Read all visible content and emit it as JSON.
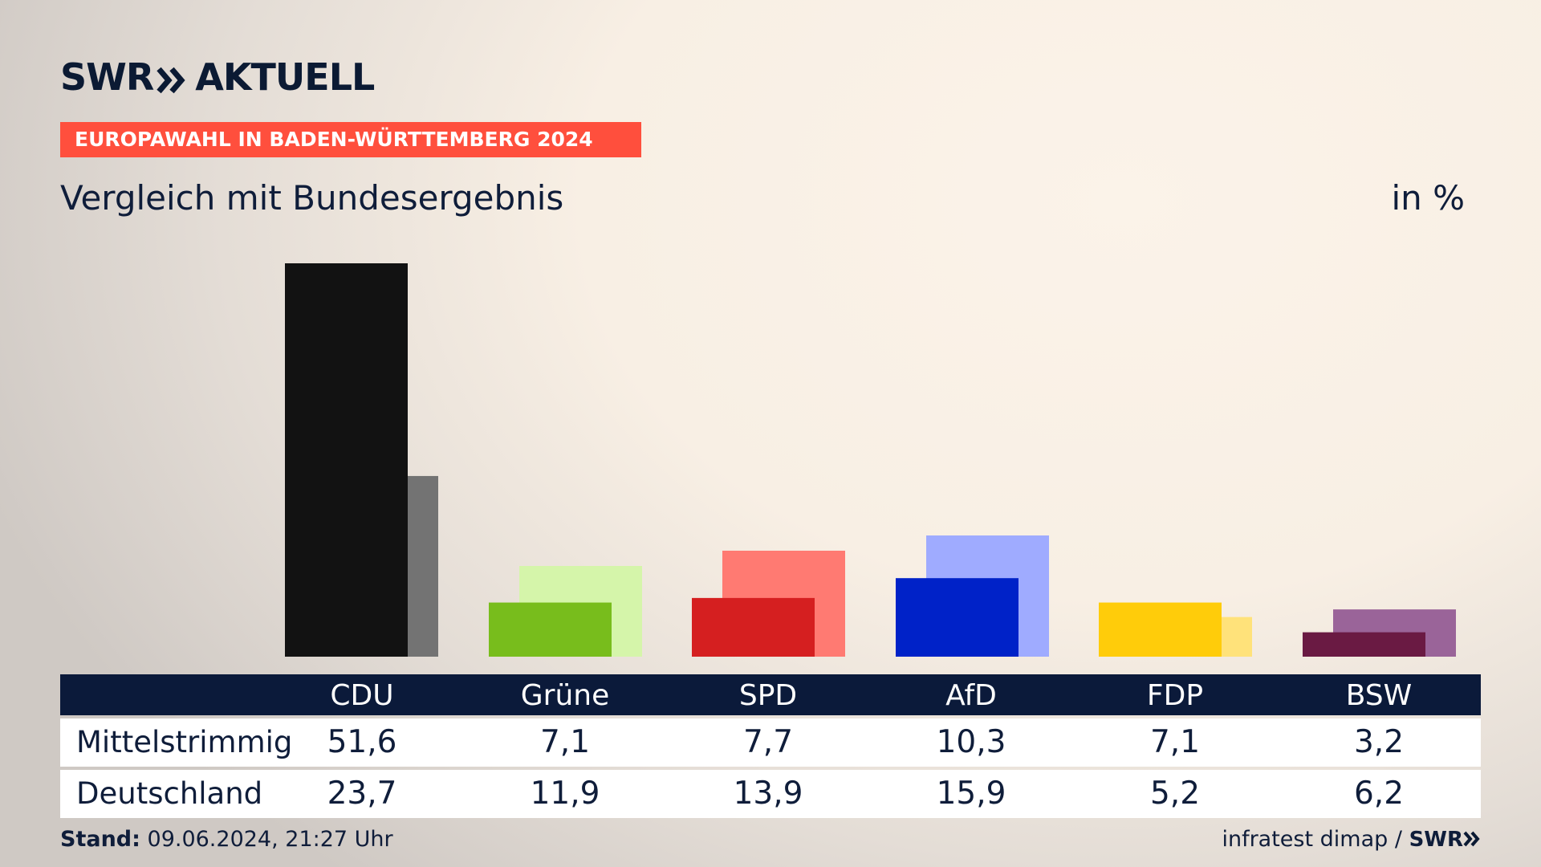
{
  "brand": {
    "logo_left": "SWR",
    "logo_right": "AKTUELL",
    "logo_chevron": "double-chevron-icon"
  },
  "header": {
    "badge": "EUROPAWAHL IN BADEN-WÜRTTEMBERG 2024",
    "subtitle": "Vergleich mit Bundesergebnis",
    "unit": "in %"
  },
  "chart_data": {
    "type": "bar",
    "categories": [
      "CDU",
      "Grüne",
      "SPD",
      "AfD",
      "FDP",
      "BSW"
    ],
    "series": [
      {
        "name": "Mittelstrimmig",
        "values": [
          51.6,
          7.1,
          7.7,
          10.3,
          7.1,
          3.2
        ]
      },
      {
        "name": "Deutschland",
        "values": [
          23.7,
          11.9,
          13.9,
          15.9,
          5.2,
          6.2
        ]
      }
    ],
    "colors_primary": [
      "#121212",
      "#78bd1c",
      "#d51f20",
      "#0022c8",
      "#ffcc0a",
      "#6a1a43"
    ],
    "colors_secondary": [
      "#737373",
      "#d5f5aa",
      "#ff7a72",
      "#9fabff",
      "#ffe27a",
      "#9a6499"
    ],
    "ylim": [
      0,
      51.6
    ],
    "grid": false
  },
  "table": {
    "headers": [
      "CDU",
      "Grüne",
      "SPD",
      "AfD",
      "FDP",
      "BSW"
    ],
    "rows": [
      {
        "label": "Mittelstrimmig",
        "values": [
          "51,6",
          "7,1",
          "7,7",
          "10,3",
          "7,1",
          "3,2"
        ]
      },
      {
        "label": "Deutschland",
        "values": [
          "23,7",
          "11,9",
          "13,9",
          "15,9",
          "5,2",
          "6,2"
        ]
      }
    ]
  },
  "footer": {
    "stand_label": "Stand:",
    "stand_value": "09.06.2024, 21:27 Uhr",
    "source": "infratest dimap /",
    "source_logo": "SWR"
  }
}
